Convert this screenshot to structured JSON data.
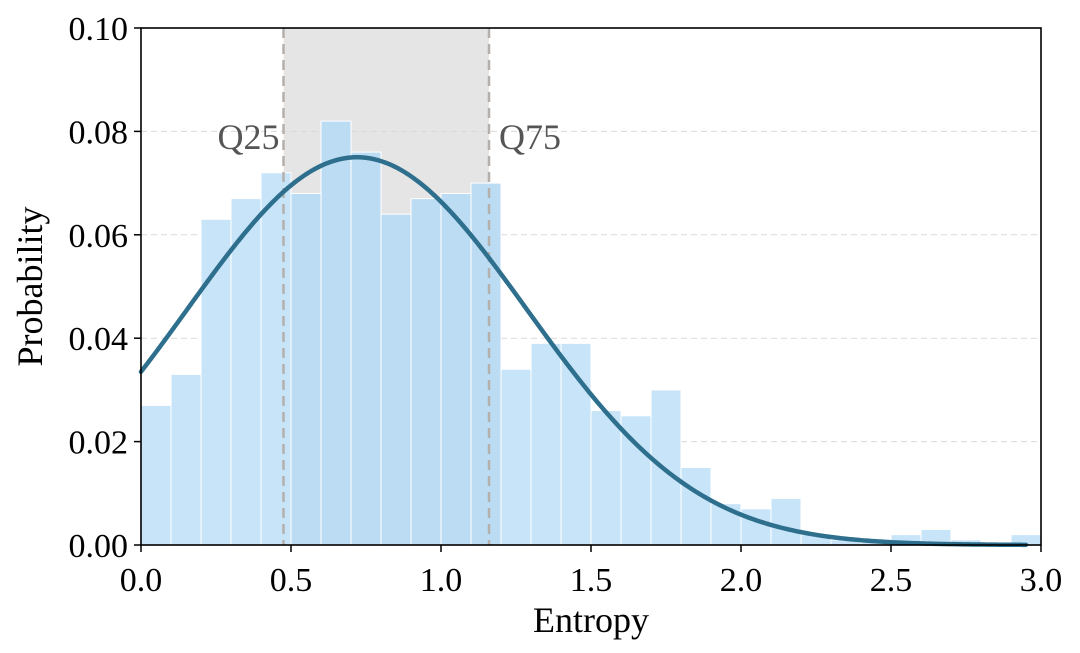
{
  "chart_data": {
    "type": "bar",
    "title": "",
    "xlabel": "Entropy",
    "ylabel": "Probability",
    "xlim": [
      0.0,
      3.0
    ],
    "ylim": [
      0.0,
      0.1
    ],
    "xticks": [
      "0.0",
      "0.5",
      "1.0",
      "1.5",
      "2.0",
      "2.5",
      "3.0"
    ],
    "yticks": [
      "0.00",
      "0.02",
      "0.04",
      "0.06",
      "0.08",
      "0.10"
    ],
    "grid": "horizontal-dashed",
    "bins": [
      {
        "x0": 0.0,
        "x1": 0.1,
        "value": 0.027
      },
      {
        "x0": 0.1,
        "x1": 0.2,
        "value": 0.033
      },
      {
        "x0": 0.2,
        "x1": 0.3,
        "value": 0.063
      },
      {
        "x0": 0.3,
        "x1": 0.4,
        "value": 0.067
      },
      {
        "x0": 0.4,
        "x1": 0.5,
        "value": 0.072
      },
      {
        "x0": 0.5,
        "x1": 0.6,
        "value": 0.068
      },
      {
        "x0": 0.6,
        "x1": 0.7,
        "value": 0.082
      },
      {
        "x0": 0.7,
        "x1": 0.8,
        "value": 0.076
      },
      {
        "x0": 0.8,
        "x1": 0.9,
        "value": 0.064
      },
      {
        "x0": 0.9,
        "x1": 1.0,
        "value": 0.067
      },
      {
        "x0": 1.0,
        "x1": 1.1,
        "value": 0.068
      },
      {
        "x0": 1.1,
        "x1": 1.2,
        "value": 0.07
      },
      {
        "x0": 1.2,
        "x1": 1.3,
        "value": 0.034
      },
      {
        "x0": 1.3,
        "x1": 1.4,
        "value": 0.039
      },
      {
        "x0": 1.4,
        "x1": 1.5,
        "value": 0.039
      },
      {
        "x0": 1.5,
        "x1": 1.6,
        "value": 0.026
      },
      {
        "x0": 1.6,
        "x1": 1.7,
        "value": 0.025
      },
      {
        "x0": 1.7,
        "x1": 1.8,
        "value": 0.03
      },
      {
        "x0": 1.8,
        "x1": 1.9,
        "value": 0.015
      },
      {
        "x0": 1.9,
        "x1": 2.0,
        "value": 0.008
      },
      {
        "x0": 2.0,
        "x1": 2.1,
        "value": 0.007
      },
      {
        "x0": 2.1,
        "x1": 2.2,
        "value": 0.009
      },
      {
        "x0": 2.2,
        "x1": 2.3,
        "value": 0.002
      },
      {
        "x0": 2.3,
        "x1": 2.4,
        "value": 0.001
      },
      {
        "x0": 2.4,
        "x1": 2.5,
        "value": 0.001
      },
      {
        "x0": 2.5,
        "x1": 2.6,
        "value": 0.002
      },
      {
        "x0": 2.6,
        "x1": 2.7,
        "value": 0.003
      },
      {
        "x0": 2.7,
        "x1": 2.8,
        "value": 0.001
      },
      {
        "x0": 2.8,
        "x1": 2.9,
        "value": 0.0005
      },
      {
        "x0": 2.9,
        "x1": 3.0,
        "value": 0.002
      }
    ],
    "curve": {
      "type": "normal",
      "mean": 0.72,
      "peak": 0.075
    },
    "quantiles": [
      {
        "label": "Q25",
        "x": 0.475
      },
      {
        "label": "Q75",
        "x": 1.16
      }
    ],
    "colors": {
      "bar": "#c8e4f8",
      "bar_inner": "#bcdcf3",
      "bar_edge": "#ffffff",
      "curve": "#2e6f8e",
      "quantile_band": "#e6e5e5",
      "quantile_line": "#b5b0ac",
      "grid": "#d9d9d9",
      "quantile_label": "#555555"
    }
  }
}
